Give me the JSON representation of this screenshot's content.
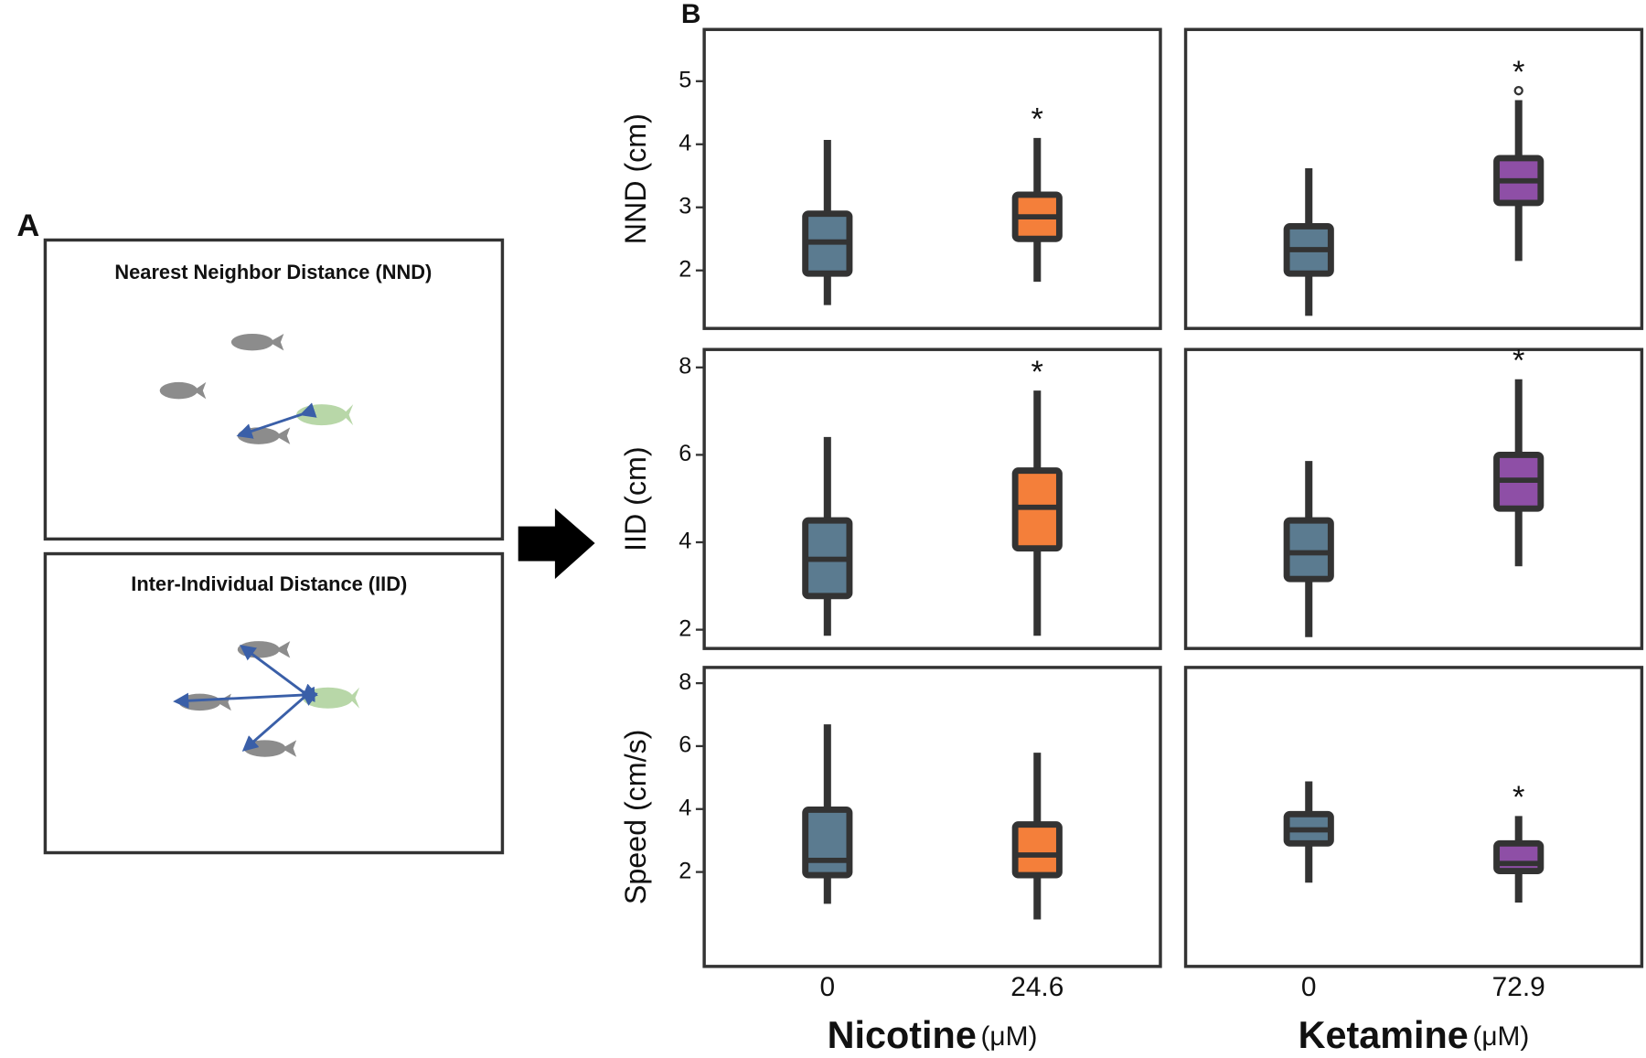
{
  "figure": {
    "panel_a_label": "A",
    "panel_b_label": "B"
  },
  "diagram": {
    "nnd_title": "Nearest Neighbor Distance (NND)",
    "iid_title": "Inter-Individual Distance (IID)"
  },
  "chart_data": [
    {
      "type": "box",
      "categories": [
        "0",
        "24.6"
      ],
      "xlabel": "Nicotine",
      "xunit": "(μM)",
      "colors": [
        "#5b7b90",
        "#f47f3a"
      ],
      "rows": [
        {
          "ylabel": "NND (cm)",
          "ylim": [
            1.08,
            5.82
          ],
          "yticks": [
            2,
            3,
            4,
            5
          ],
          "boxes": [
            {
              "whisker_low": 1.45,
              "q1": 1.95,
              "median": 2.45,
              "q3": 2.9,
              "whisker_high": 4.07
            },
            {
              "whisker_low": 1.82,
              "q1": 2.5,
              "median": 2.85,
              "q3": 3.2,
              "whisker_high": 4.1,
              "annotation": "*"
            }
          ]
        },
        {
          "ylabel": "IID (cm)",
          "ylim": [
            1.57,
            8.41
          ],
          "yticks": [
            2,
            4,
            6,
            8
          ],
          "boxes": [
            {
              "whisker_low": 1.86,
              "q1": 2.77,
              "median": 3.61,
              "q3": 4.5,
              "whisker_high": 6.41
            },
            {
              "whisker_low": 1.86,
              "q1": 3.86,
              "median": 4.8,
              "q3": 5.64,
              "whisker_high": 7.47,
              "annotation": "*"
            }
          ]
        },
        {
          "ylabel": "Speed (cm/s)",
          "ylim": [
            -1.0,
            8.5
          ],
          "yticks": [
            2,
            4,
            6,
            8
          ],
          "boxes": [
            {
              "whisker_low": 0.99,
              "q1": 1.9,
              "median": 2.37,
              "q3": 3.98,
              "whisker_high": 6.69
            },
            {
              "whisker_low": 0.49,
              "q1": 1.9,
              "median": 2.54,
              "q3": 3.51,
              "whisker_high": 5.79
            }
          ]
        }
      ]
    },
    {
      "type": "box",
      "categories": [
        "0",
        "72.9"
      ],
      "xlabel": "Ketamine",
      "xunit": "(μM)",
      "colors": [
        "#5b7b90",
        "#8e4fa6"
      ],
      "rows": [
        {
          "ylim": [
            1.08,
            5.82
          ],
          "boxes": [
            {
              "whisker_low": 1.28,
              "q1": 1.95,
              "median": 2.33,
              "q3": 2.7,
              "whisker_high": 3.62
            },
            {
              "whisker_low": 2.15,
              "q1": 3.07,
              "median": 3.42,
              "q3": 3.78,
              "whisker_high": 4.7,
              "outliers": [
                4.85
              ],
              "annotation": "*"
            }
          ]
        },
        {
          "ylim": [
            1.57,
            8.41
          ],
          "boxes": [
            {
              "whisker_low": 1.83,
              "q1": 3.16,
              "median": 3.76,
              "q3": 4.5,
              "whisker_high": 5.86
            },
            {
              "whisker_low": 3.45,
              "q1": 4.77,
              "median": 5.42,
              "q3": 6.0,
              "whisker_high": 7.73,
              "annotation": "*"
            }
          ]
        },
        {
          "ylim": [
            -1.0,
            8.5
          ],
          "boxes": [
            {
              "whisker_low": 1.66,
              "q1": 2.91,
              "median": 3.34,
              "q3": 3.84,
              "whisker_high": 4.88
            },
            {
              "whisker_low": 1.03,
              "q1": 2.03,
              "median": 2.27,
              "q3": 2.91,
              "whisker_high": 3.78,
              "annotation": "*"
            }
          ]
        }
      ]
    }
  ]
}
